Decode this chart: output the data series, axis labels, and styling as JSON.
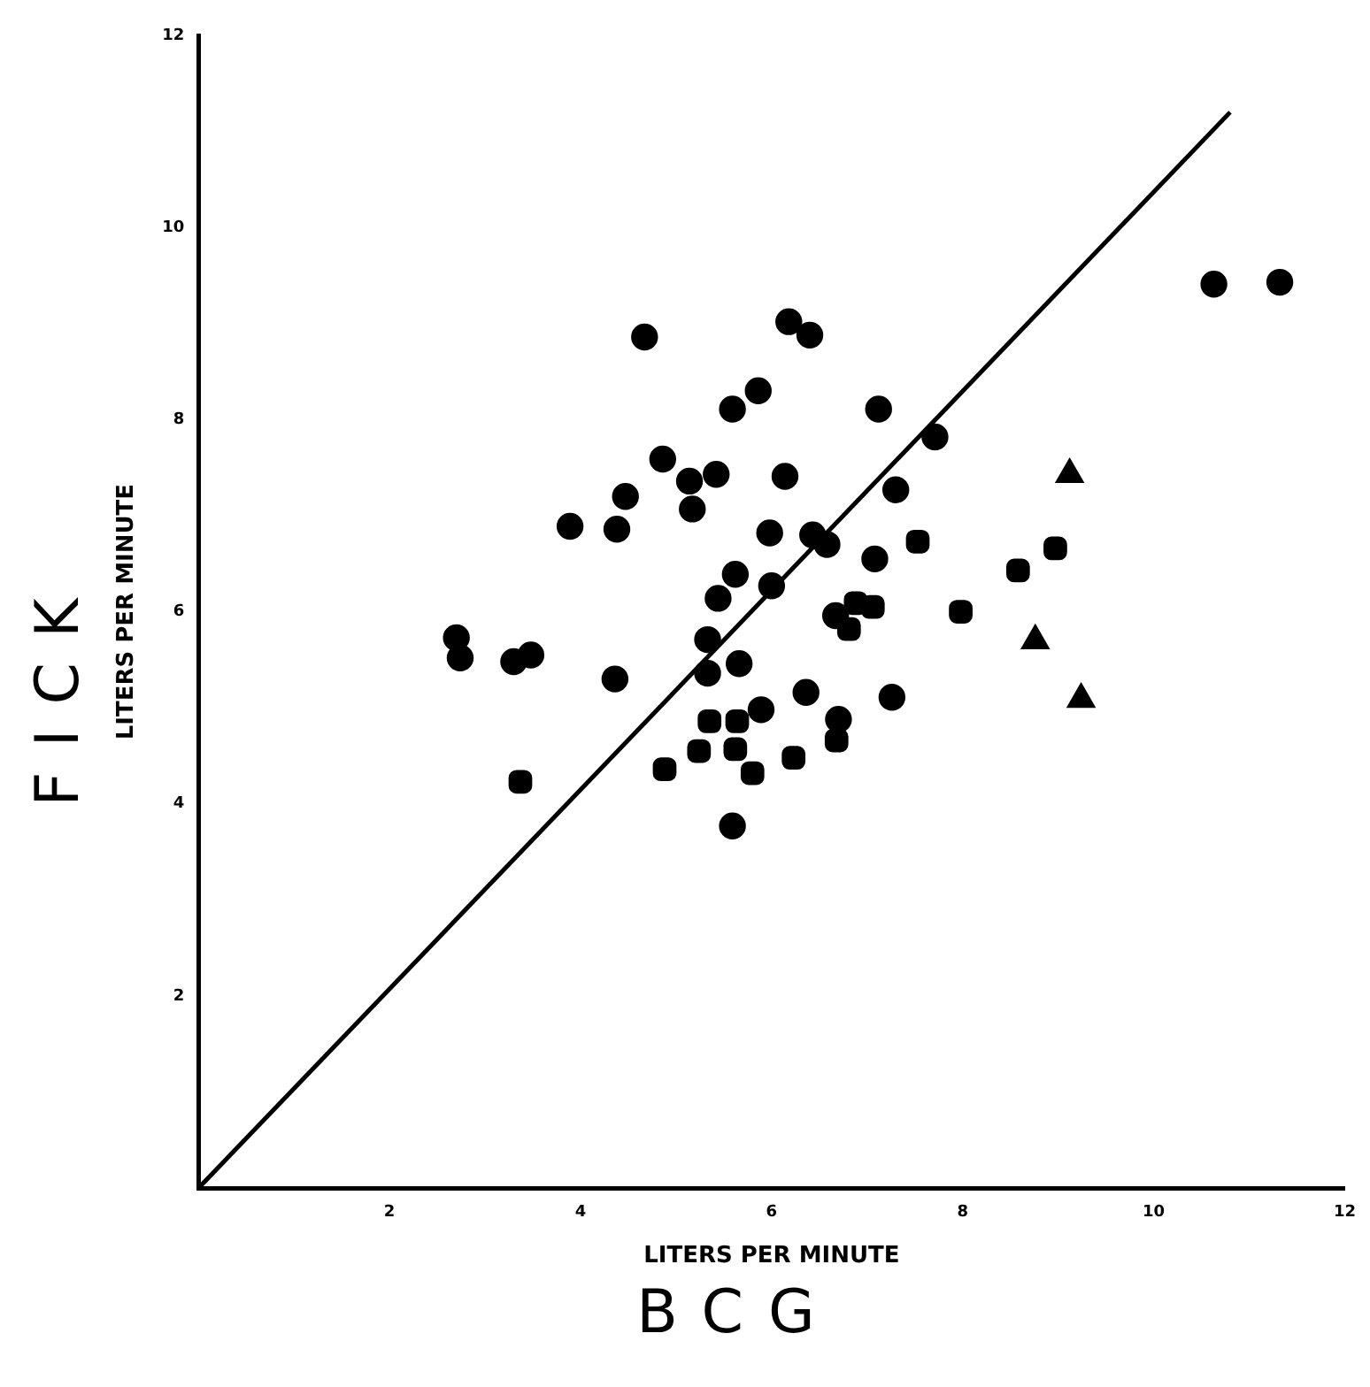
{
  "chart_data": {
    "type": "scatter",
    "xlabel": "LITERS PER MINUTE",
    "ylabel": "LITERS PER MINUTE",
    "annotations": [
      "BCG",
      "FICK"
    ],
    "xlim": [
      0,
      12
    ],
    "ylim": [
      0,
      12
    ],
    "xticks": [
      2,
      4,
      6,
      8,
      10,
      12
    ],
    "yticks": [
      2,
      4,
      6,
      8,
      10,
      12
    ],
    "grid": false,
    "series": [
      {
        "color": "#000000",
        "marker": "circle",
        "x": [
          4.67,
          6.18,
          6.4,
          5.86,
          5.59,
          7.12,
          7.71,
          4.86,
          5.14,
          5.42,
          6.14,
          4.47,
          5.17,
          7.3,
          3.89,
          4.38,
          5.98,
          6.43,
          6.58,
          7.08,
          5.62,
          6.0,
          5.44,
          6.67,
          2.7,
          2.74,
          3.3,
          3.48,
          5.33,
          5.33,
          5.66,
          4.36,
          6.36,
          7.26,
          5.89,
          6.7,
          5.59,
          10.63,
          11.32
        ],
        "values": [
          8.86,
          9.02,
          8.88,
          8.3,
          8.11,
          8.11,
          7.82,
          7.59,
          7.36,
          7.43,
          7.41,
          7.2,
          7.07,
          7.27,
          6.89,
          6.86,
          6.82,
          6.8,
          6.7,
          6.55,
          6.39,
          6.27,
          6.14,
          5.96,
          5.73,
          5.52,
          5.48,
          5.55,
          5.71,
          5.36,
          5.46,
          5.3,
          5.16,
          5.11,
          4.98,
          4.88,
          3.77,
          9.41,
          9.43
        ]
      },
      {
        "color": "#000000",
        "marker": "square",
        "x": [
          7.53,
          6.88,
          7.06,
          6.81,
          7.98,
          6.68,
          5.35,
          5.64,
          5.24,
          5.62,
          4.88,
          6.23,
          8.58,
          8.97
        ],
        "values": [
          6.73,
          6.09,
          6.05,
          5.82,
          6.0,
          4.66,
          4.86,
          4.86,
          4.55,
          4.57,
          4.36,
          4.48,
          6.43,
          6.66
        ]
      },
      {
        "color": "#000000",
        "marker": "square",
        "x": [
          3.37,
          5.8
        ],
        "values": [
          4.23,
          4.32
        ]
      },
      {
        "color": "#000000",
        "marker": "triangle",
        "x": [
          8.76,
          9.24
        ],
        "values": [
          5.7,
          5.09
        ]
      },
      {
        "color": "#000000",
        "marker": "triangle",
        "x": [
          9.12
        ],
        "values": [
          7.43
        ]
      },
      {
        "type": "line",
        "color": "#000000",
        "marker": "none",
        "line_style": "solid",
        "x": [
          0,
          10.8
        ],
        "values": [
          0,
          11.2
        ]
      }
    ]
  }
}
